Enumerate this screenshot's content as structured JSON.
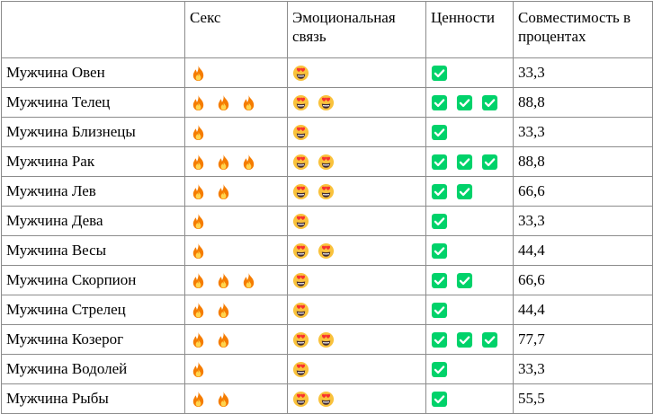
{
  "headers": [
    "Секс",
    "Эмоциональная связь",
    "Ценности",
    "Совместимость в процентах"
  ],
  "rows": [
    {
      "name": "Мужчина Овен",
      "sex": 1,
      "emo": 1,
      "val": 1,
      "pct": "33,3"
    },
    {
      "name": "Мужчина Телец",
      "sex": 3,
      "emo": 2,
      "val": 3,
      "pct": "88,8"
    },
    {
      "name": "Мужчина Близнецы",
      "sex": 1,
      "emo": 1,
      "val": 1,
      "pct": "33,3"
    },
    {
      "name": "Мужчина Рак",
      "sex": 3,
      "emo": 2,
      "val": 3,
      "pct": "88,8"
    },
    {
      "name": "Мужчина Лев",
      "sex": 2,
      "emo": 2,
      "val": 2,
      "pct": "66,6"
    },
    {
      "name": "Мужчина Дева",
      "sex": 1,
      "emo": 1,
      "val": 1,
      "pct": "33,3"
    },
    {
      "name": "Мужчина Весы",
      "sex": 1,
      "emo": 2,
      "val": 1,
      "pct": "44,4"
    },
    {
      "name": "Мужчина Скорпион",
      "sex": 3,
      "emo": 1,
      "val": 2,
      "pct": "66,6"
    },
    {
      "name": "Мужчина Стрелец",
      "sex": 2,
      "emo": 1,
      "val": 1,
      "pct": "44,4"
    },
    {
      "name": "Мужчина Козерог",
      "sex": 2,
      "emo": 2,
      "val": 3,
      "pct": "77,7"
    },
    {
      "name": "Мужчина Водолей",
      "sex": 1,
      "emo": 1,
      "val": 1,
      "pct": "33,3"
    },
    {
      "name": "Мужчина Рыбы",
      "sex": 2,
      "emo": 2,
      "val": 1,
      "pct": "55,5"
    }
  ],
  "icons": {
    "sex": "fire-icon",
    "emo": "heart-eyes-icon",
    "val": "check-mark-icon"
  },
  "colors": {
    "fire_outer": "#f57c00",
    "fire_inner": "#ffd54f",
    "face": "#f9c23c",
    "heart": "#f8312f",
    "check_bg": "#00d26a",
    "border": "#8c8c8c"
  }
}
